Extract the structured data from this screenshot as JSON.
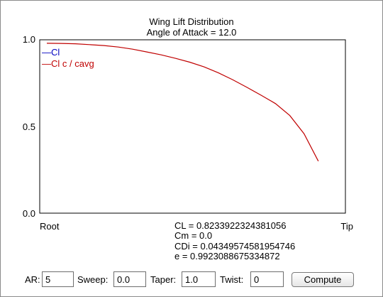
{
  "chart_data": {
    "type": "line",
    "title": "Wing Lift Distribution",
    "subtitle": "Angle of Attack = 12.0",
    "xlabel_left": "Root",
    "xlabel_right": "Tip",
    "xlim": [
      0,
      1
    ],
    "ylim": [
      0,
      1
    ],
    "yticks": [
      "0.0",
      "0.5",
      "1.0"
    ],
    "grid": false,
    "legend_position": "top-left",
    "series": [
      {
        "name": "Cl",
        "color": "#0000c0",
        "x": [],
        "values": []
      },
      {
        "name": "Cl c / cavg",
        "color": "#c00000",
        "x": [
          0.0,
          0.05,
          0.1,
          0.15,
          0.2,
          0.25,
          0.3,
          0.35,
          0.4,
          0.45,
          0.5,
          0.55,
          0.6,
          0.65,
          0.7,
          0.75,
          0.8,
          0.85,
          0.9,
          0.95,
          1.0
        ],
        "values": [
          0.98,
          0.979,
          0.977,
          0.972,
          0.967,
          0.958,
          0.946,
          0.93,
          0.913,
          0.893,
          0.871,
          0.844,
          0.81,
          0.77,
          0.726,
          0.68,
          0.632,
          0.563,
          0.458,
          0.3,
          0.3
        ]
      }
    ]
  },
  "stats": {
    "cl": "CL = 0.8233922324381056",
    "cm": "Cm = 0.0",
    "cdi": "CDi = 0.043495745819547​46",
    "e": "e = 0.9923088675334872"
  },
  "controls": {
    "ar_label": "AR:",
    "ar_value": "5",
    "sweep_label": "Sweep:",
    "sweep_value": "0.0",
    "taper_label": "Taper:",
    "taper_value": "1.0",
    "twist_label": "Twist:",
    "twist_value": "0",
    "compute_label": "Compute"
  }
}
